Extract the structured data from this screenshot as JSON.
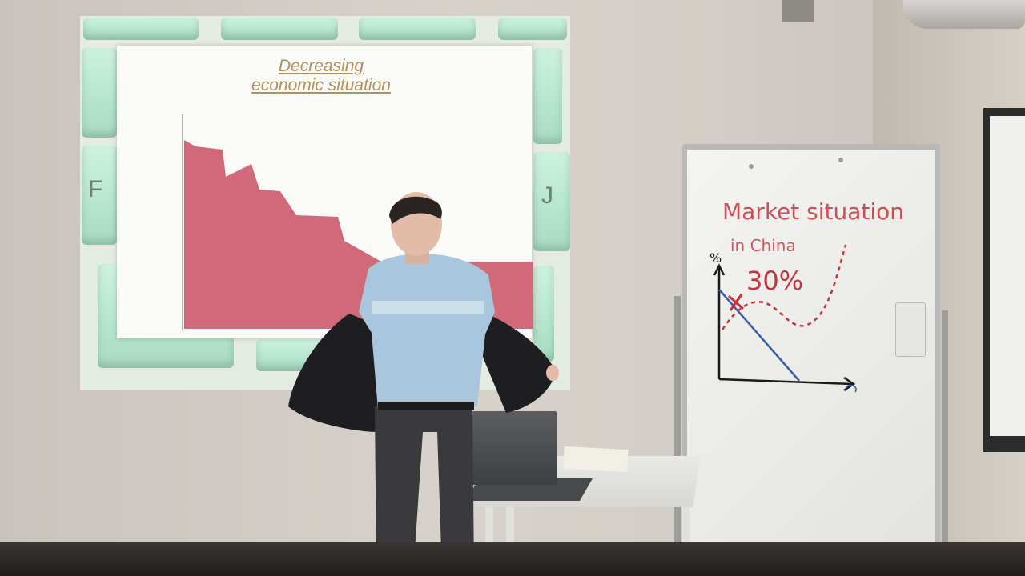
{
  "slide": {
    "title_line1": "Decreasing",
    "title_line2": "economic situation",
    "fill_color": "#d06a78",
    "title_color": "#b5905a"
  },
  "keyboard": {
    "left_key": "F",
    "right_key": "J"
  },
  "whiteboard": {
    "heading_line1": "Market situation",
    "heading_line2": "in China",
    "percent": "30%",
    "y_axis_label": "%",
    "ink_red": "#c8323c",
    "ink_blue": "#3a5fa8",
    "ink_black": "#1a1a1a"
  }
}
